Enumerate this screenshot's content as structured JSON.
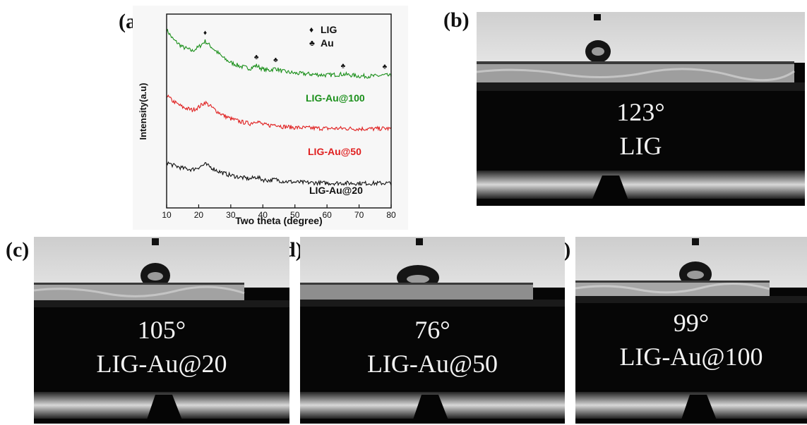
{
  "panels": {
    "a": {
      "label": "(a)"
    },
    "b": {
      "label": "(b)",
      "angle": "123°",
      "sample": "LIG"
    },
    "c": {
      "label": "(c)",
      "angle": "105°",
      "sample": "LIG-Au@20"
    },
    "d": {
      "label": "(d)",
      "angle": "76°",
      "sample": "LIG-Au@50"
    },
    "e": {
      "label": "(e)",
      "angle": "99°",
      "sample": "LIG-Au@100"
    }
  },
  "chart_data": {
    "type": "line",
    "title": "",
    "xlabel": "Two theta (degree)",
    "ylabel": "Intensity(a.u)",
    "xlim": [
      10,
      80
    ],
    "xticks": [
      10,
      20,
      30,
      40,
      50,
      60,
      70,
      80
    ],
    "y_ticks_shown": false,
    "grid": false,
    "legend_position": "top-right",
    "legend": [
      {
        "marker": "♦",
        "label": "LIG"
      },
      {
        "marker": "♣",
        "label": "Au"
      }
    ],
    "peak_markers": [
      {
        "x": 22,
        "marker": "♦"
      },
      {
        "x": 38,
        "marker": "♣"
      },
      {
        "x": 44,
        "marker": "♣"
      },
      {
        "x": 65,
        "marker": "♣"
      },
      {
        "x": 78,
        "marker": "♣"
      }
    ],
    "series": [
      {
        "name": "LIG-Au@100",
        "color": "#1a8f1a",
        "x": [
          10,
          12,
          15,
          18,
          20,
          22,
          24,
          26,
          28,
          30,
          33,
          36,
          38,
          40,
          42,
          44,
          46,
          50,
          55,
          60,
          65,
          70,
          75,
          78,
          80
        ],
        "y": [
          9.2,
          8.7,
          8.3,
          8.1,
          8.3,
          8.6,
          8.3,
          8.0,
          7.7,
          7.5,
          7.3,
          7.2,
          7.35,
          7.15,
          7.1,
          7.2,
          7.05,
          6.95,
          6.9,
          6.85,
          6.9,
          6.8,
          6.8,
          6.85,
          6.8
        ]
      },
      {
        "name": "LIG-Au@50",
        "color": "#e02020",
        "x": [
          10,
          12,
          15,
          18,
          20,
          22,
          24,
          26,
          28,
          30,
          33,
          36,
          38,
          40,
          42,
          44,
          46,
          50,
          55,
          60,
          65,
          70,
          75,
          78,
          80
        ],
        "y": [
          5.8,
          5.5,
          5.2,
          5.05,
          5.2,
          5.45,
          5.2,
          4.95,
          4.75,
          4.6,
          4.45,
          4.35,
          4.5,
          4.3,
          4.25,
          4.32,
          4.2,
          4.15,
          4.12,
          4.1,
          4.1,
          4.08,
          4.08,
          4.1,
          4.08
        ]
      },
      {
        "name": "LIG-Au@20",
        "color": "#111111",
        "x": [
          10,
          12,
          15,
          18,
          20,
          22,
          24,
          26,
          28,
          30,
          33,
          36,
          38,
          40,
          42,
          44,
          46,
          50,
          55,
          60,
          65,
          70,
          75,
          78,
          80
        ],
        "y": [
          2.35,
          2.2,
          2.05,
          1.98,
          2.1,
          2.25,
          2.08,
          1.9,
          1.78,
          1.68,
          1.58,
          1.5,
          1.6,
          1.45,
          1.42,
          1.47,
          1.38,
          1.33,
          1.3,
          1.28,
          1.28,
          1.27,
          1.27,
          1.28,
          1.27
        ]
      }
    ]
  }
}
